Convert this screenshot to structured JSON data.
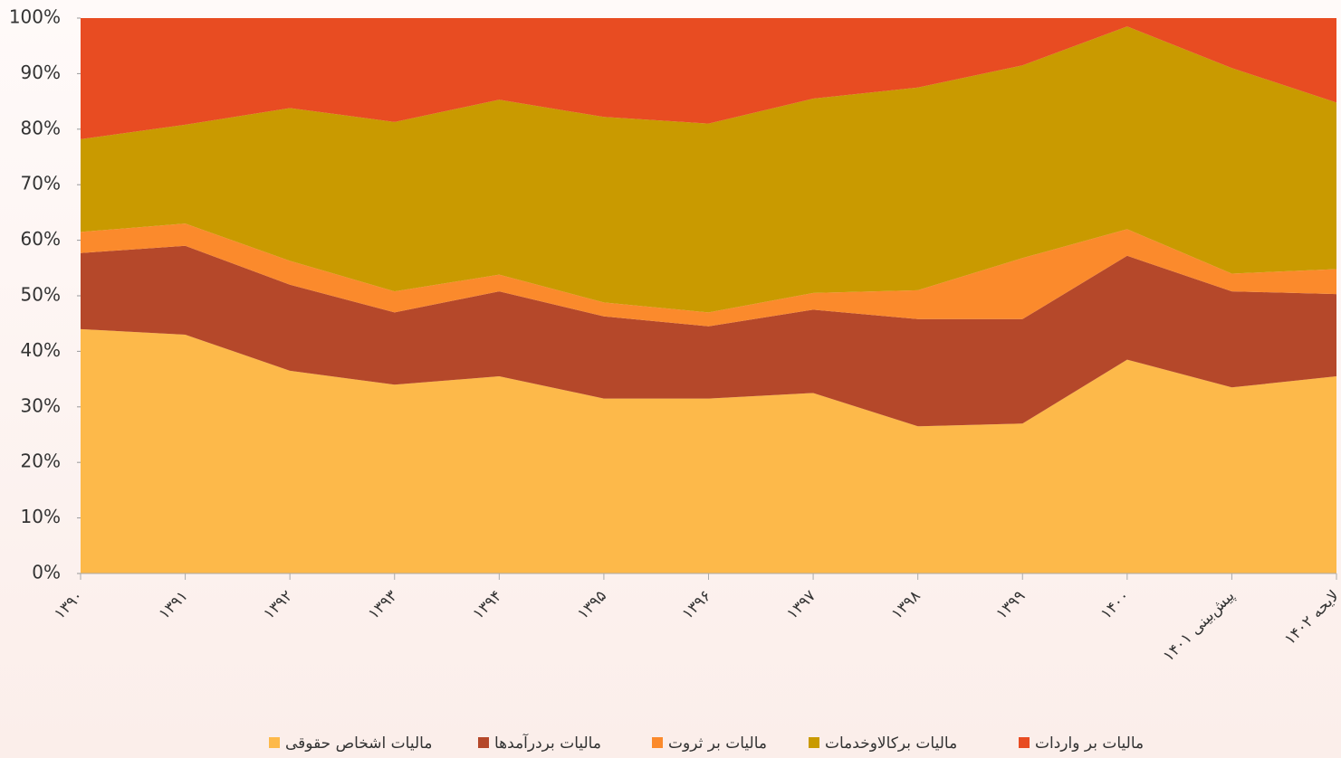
{
  "chart_data": {
    "type": "stacked_area_percent",
    "categories": [
      "۱۳۹۰",
      "۱۳۹۱",
      "۱۳۹۲",
      "۱۳۹۳",
      "۱۳۹۴",
      "۱۳۹۵",
      "۱۳۹۶",
      "۱۳۹۷",
      "۱۳۹۸",
      "۱۳۹۹",
      "۱۴۰۰",
      "پیش‌بینی ۱۴۰۱",
      "لایحه ۱۴۰۲"
    ],
    "series": [
      {
        "name": "مالیات اشخاص حقوقی",
        "color": "#fdb94a",
        "values": [
          44,
          43,
          36.5,
          34,
          35.5,
          31.5,
          31.5,
          32.5,
          26.5,
          27,
          38.5,
          33.5,
          35.5
        ]
      },
      {
        "name": "مالیات بردرآمدها",
        "color": "#b5482a",
        "values": [
          13.7,
          16,
          15.5,
          13,
          15.3,
          14.8,
          13,
          15,
          19.3,
          18.8,
          18.7,
          17.3,
          14.8
        ]
      },
      {
        "name": "مالیات بر ثروت",
        "color": "#fb8a2c",
        "values": [
          3.8,
          4,
          4.3,
          3.8,
          3,
          2.5,
          2.5,
          3,
          5.2,
          11,
          4.8,
          3.2,
          4.5
        ]
      },
      {
        "name": "مالیات برکالاوخدمات",
        "color": "#c99a00",
        "values": [
          16.7,
          17.8,
          27.5,
          30.5,
          31.5,
          33.4,
          34,
          35,
          36.5,
          34.7,
          36.5,
          37,
          30
        ]
      },
      {
        "name": "مالیات بر واردات",
        "color": "#e84c22",
        "values": [
          21.8,
          19.2,
          16.2,
          18.7,
          14.7,
          17.8,
          19,
          14.5,
          12.5,
          8.5,
          1.5,
          9,
          15.2
        ]
      }
    ],
    "ylim": [
      0,
      100
    ],
    "yticks": [
      {
        "value": 0,
        "label": "0%"
      },
      {
        "value": 10,
        "label": "10%"
      },
      {
        "value": 20,
        "label": "20%"
      },
      {
        "value": 30,
        "label": "30%"
      },
      {
        "value": 40,
        "label": "40%"
      },
      {
        "value": 50,
        "label": "50%"
      },
      {
        "value": 60,
        "label": "60%"
      },
      {
        "value": 70,
        "label": "70%"
      },
      {
        "value": 80,
        "label": "80%"
      },
      {
        "value": 90,
        "label": "90%"
      },
      {
        "value": 100,
        "label": "100%"
      }
    ],
    "legend": "bottom"
  }
}
